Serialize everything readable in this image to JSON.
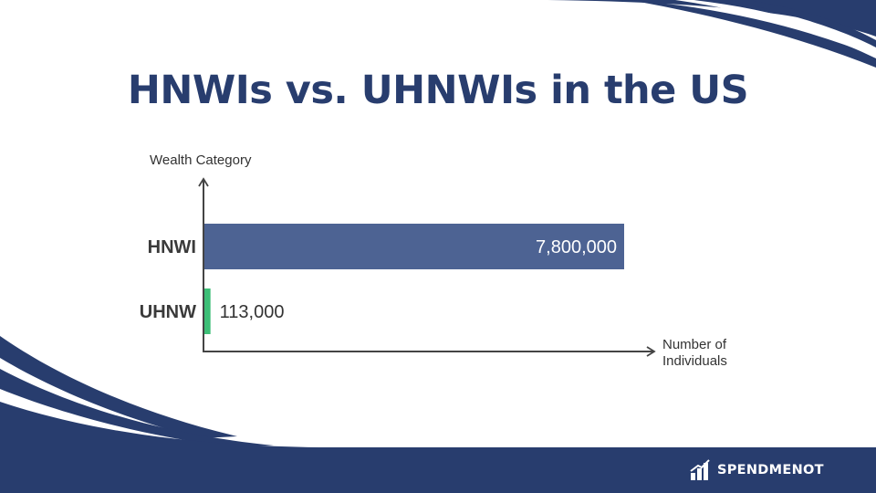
{
  "colors": {
    "navy": "#283d6e",
    "bar_hnwi": "#4d6393",
    "bar_uhnw": "#3dbf77",
    "axis": "#444444"
  },
  "brand": {
    "name": "SPENDMENOT",
    "icon": "spendmenot-logo-icon"
  },
  "chart_data": {
    "type": "bar",
    "orientation": "horizontal",
    "title": "HNWIs vs. UHNWIs in the US",
    "ylabel": "Wealth Category",
    "xlabel": [
      "Number of",
      "Individuals"
    ],
    "categories": [
      "HNWI",
      "UHNW"
    ],
    "values": [
      7800000,
      113000
    ],
    "value_labels": [
      "7,800,000",
      "113,000"
    ],
    "xlim": [
      0,
      7800000
    ],
    "grid": false,
    "legend": "none"
  }
}
